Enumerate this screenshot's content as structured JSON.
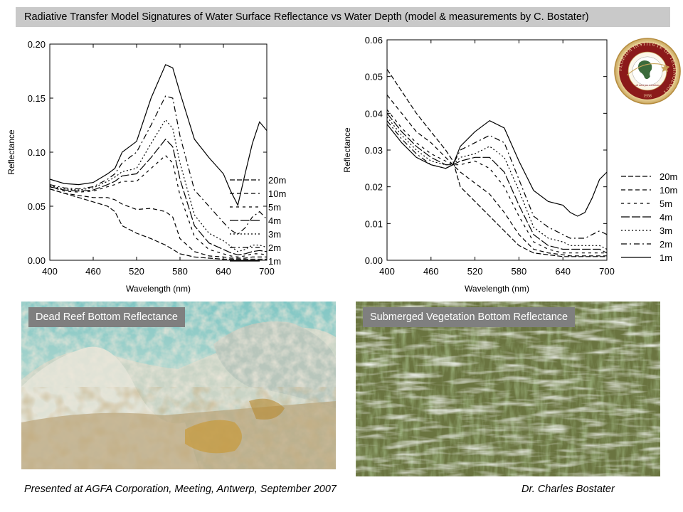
{
  "title": "Radiative Transfer Model Signatures of Water Surface Reflectance vs Water Depth (model & measurements by C. Bostater)",
  "logo": {
    "ring_text": "FLORIDA INSTITUTE OF TECHNOLOGY",
    "motto": "ad astra per scientiam",
    "year": "1958"
  },
  "legend_labels": [
    "20m",
    "10m",
    "5m",
    "4m",
    "3m",
    "2m",
    "1m"
  ],
  "chart_data": [
    {
      "type": "line",
      "xlabel": "Wavelength (nm)",
      "ylabel": "Reflectance",
      "xlim": [
        400,
        700
      ],
      "ylim": [
        0,
        0.2
      ],
      "xticks": [
        "400",
        "460",
        "520",
        "580",
        "640",
        "700"
      ],
      "yticks": [
        "0.00",
        "0.05",
        "0.10",
        "0.15",
        "0.20"
      ],
      "x": [
        400,
        420,
        440,
        460,
        480,
        490,
        500,
        520,
        540,
        560,
        570,
        580,
        600,
        620,
        640,
        650,
        660,
        670,
        680,
        690,
        700
      ],
      "series": [
        {
          "name": "20m",
          "values": [
            0.066,
            0.062,
            0.058,
            0.054,
            0.05,
            0.045,
            0.032,
            0.025,
            0.02,
            0.014,
            0.01,
            0.006,
            0.003,
            0.002,
            0.001,
            0.001,
            0.001,
            0.001,
            0.001,
            0.001,
            0.001
          ]
        },
        {
          "name": "10m",
          "values": [
            0.066,
            0.062,
            0.06,
            0.058,
            0.058,
            0.056,
            0.052,
            0.047,
            0.048,
            0.045,
            0.04,
            0.02,
            0.008,
            0.004,
            0.003,
            0.002,
            0.002,
            0.002,
            0.003,
            0.003,
            0.003
          ]
        },
        {
          "name": "5m",
          "values": [
            0.068,
            0.064,
            0.063,
            0.064,
            0.068,
            0.07,
            0.073,
            0.073,
            0.085,
            0.097,
            0.09,
            0.06,
            0.022,
            0.01,
            0.006,
            0.004,
            0.003,
            0.004,
            0.006,
            0.006,
            0.005
          ]
        },
        {
          "name": "4m",
          "values": [
            0.068,
            0.065,
            0.064,
            0.065,
            0.07,
            0.073,
            0.078,
            0.08,
            0.095,
            0.112,
            0.105,
            0.075,
            0.032,
            0.016,
            0.01,
            0.007,
            0.005,
            0.006,
            0.008,
            0.009,
            0.008
          ]
        },
        {
          "name": "3m",
          "values": [
            0.069,
            0.066,
            0.065,
            0.067,
            0.073,
            0.077,
            0.082,
            0.085,
            0.108,
            0.13,
            0.122,
            0.09,
            0.042,
            0.025,
            0.018,
            0.013,
            0.008,
            0.01,
            0.014,
            0.014,
            0.012
          ]
        },
        {
          "name": "2m",
          "values": [
            0.07,
            0.067,
            0.066,
            0.068,
            0.075,
            0.08,
            0.09,
            0.1,
            0.125,
            0.152,
            0.15,
            0.115,
            0.065,
            0.05,
            0.035,
            0.028,
            0.024,
            0.03,
            0.04,
            0.045,
            0.038
          ]
        },
        {
          "name": "1m",
          "values": [
            0.075,
            0.071,
            0.07,
            0.072,
            0.08,
            0.085,
            0.1,
            0.11,
            0.15,
            0.181,
            0.178,
            0.155,
            0.112,
            0.095,
            0.08,
            0.064,
            0.051,
            0.08,
            0.108,
            0.128,
            0.12
          ]
        }
      ]
    },
    {
      "type": "line",
      "xlabel": "Wavelength (nm)",
      "ylabel": "Reflectance",
      "xlim": [
        400,
        700
      ],
      "ylim": [
        0,
        0.06
      ],
      "xticks": [
        "400",
        "460",
        "520",
        "580",
        "640",
        "700"
      ],
      "yticks": [
        "0.00",
        "0.01",
        "0.02",
        "0.03",
        "0.04",
        "0.05",
        "0.06"
      ],
      "x": [
        400,
        420,
        440,
        460,
        480,
        490,
        500,
        520,
        540,
        560,
        580,
        600,
        620,
        640,
        650,
        660,
        670,
        680,
        690,
        700
      ],
      "series": [
        {
          "name": "20m",
          "values": [
            0.052,
            0.046,
            0.04,
            0.035,
            0.03,
            0.027,
            0.02,
            0.016,
            0.012,
            0.008,
            0.004,
            0.002,
            0.0015,
            0.001,
            0.001,
            0.001,
            0.001,
            0.001,
            0.001,
            0.001
          ]
        },
        {
          "name": "10m",
          "values": [
            0.045,
            0.04,
            0.035,
            0.032,
            0.028,
            0.026,
            0.024,
            0.021,
            0.018,
            0.013,
            0.007,
            0.003,
            0.002,
            0.0015,
            0.0012,
            0.0012,
            0.0012,
            0.0012,
            0.0012,
            0.0012
          ]
        },
        {
          "name": "5m",
          "values": [
            0.041,
            0.036,
            0.032,
            0.029,
            0.027,
            0.026,
            0.026,
            0.027,
            0.025,
            0.02,
            0.012,
            0.005,
            0.003,
            0.002,
            0.002,
            0.002,
            0.002,
            0.002,
            0.002,
            0.002
          ]
        },
        {
          "name": "4m",
          "values": [
            0.04,
            0.035,
            0.031,
            0.028,
            0.026,
            0.026,
            0.027,
            0.028,
            0.028,
            0.024,
            0.015,
            0.007,
            0.004,
            0.003,
            0.003,
            0.003,
            0.003,
            0.003,
            0.003,
            0.002
          ]
        },
        {
          "name": "3m",
          "values": [
            0.039,
            0.034,
            0.03,
            0.027,
            0.026,
            0.026,
            0.028,
            0.029,
            0.031,
            0.028,
            0.019,
            0.009,
            0.006,
            0.005,
            0.004,
            0.004,
            0.004,
            0.004,
            0.004,
            0.003
          ]
        },
        {
          "name": "2m",
          "values": [
            0.038,
            0.033,
            0.029,
            0.026,
            0.025,
            0.026,
            0.03,
            0.032,
            0.034,
            0.032,
            0.022,
            0.012,
            0.009,
            0.007,
            0.006,
            0.006,
            0.006,
            0.007,
            0.008,
            0.007
          ]
        },
        {
          "name": "1m",
          "values": [
            0.037,
            0.032,
            0.028,
            0.026,
            0.025,
            0.026,
            0.031,
            0.035,
            0.038,
            0.036,
            0.027,
            0.019,
            0.016,
            0.015,
            0.013,
            0.012,
            0.013,
            0.017,
            0.022,
            0.024
          ]
        }
      ]
    }
  ],
  "photos": {
    "left_label": "Dead Reef Bottom Reflectance",
    "right_label": "Submerged Vegetation Bottom Reflectance"
  },
  "footer": {
    "left": "Presented at AGFA Corporation, Meeting, Antwerp,  September 2007",
    "right": "Dr. Charles Bostater"
  }
}
